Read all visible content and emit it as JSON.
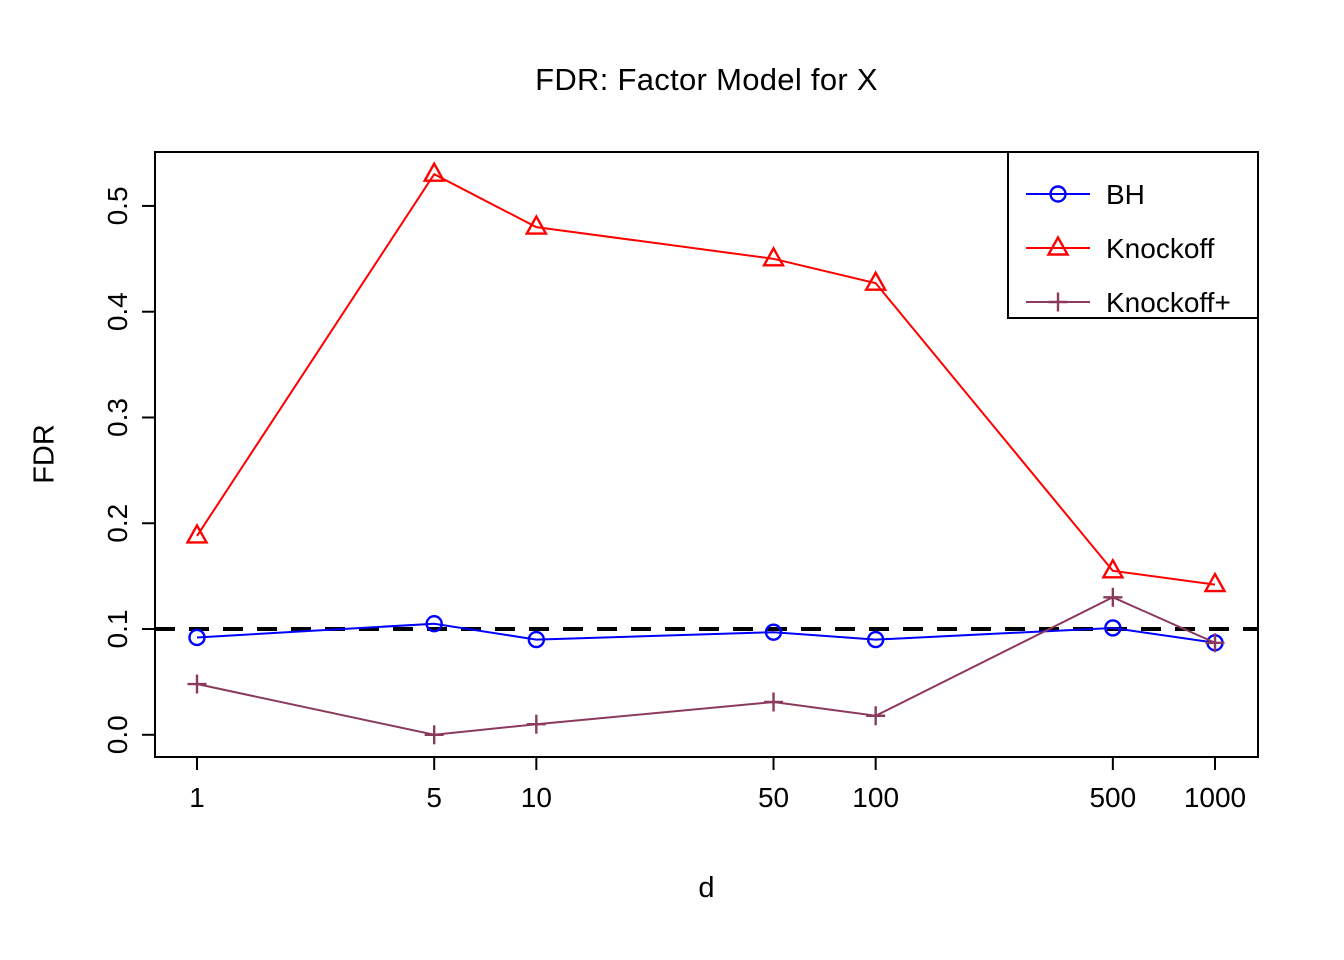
{
  "chart_data": {
    "type": "line",
    "title": "FDR: Factor Model for X",
    "xlabel": "d",
    "ylabel": "FDR",
    "x_scale": "log10",
    "x": [
      1,
      5,
      10,
      50,
      100,
      500,
      1000
    ],
    "x_tick_labels": [
      "1",
      "5",
      "10",
      "50",
      "100",
      "500",
      "1000"
    ],
    "y_ticks": [
      0.0,
      0.1,
      0.2,
      0.3,
      0.4,
      0.5
    ],
    "y_tick_labels": [
      "0.0",
      "0.1",
      "0.2",
      "0.3",
      "0.4",
      "0.5"
    ],
    "ylim": [
      -0.021,
      0.551
    ],
    "grid": false,
    "series": [
      {
        "name": "BH",
        "color": "#0000ff",
        "marker": "circle",
        "values": [
          0.092,
          0.105,
          0.09,
          0.097,
          0.09,
          0.101,
          0.087
        ]
      },
      {
        "name": "Knockoff",
        "color": "#ff0000",
        "marker": "triangle",
        "values": [
          0.188,
          0.53,
          0.48,
          0.45,
          0.427,
          0.155,
          0.142
        ]
      },
      {
        "name": "Knockoff+",
        "color": "#8b3a5e",
        "marker": "plus",
        "values": [
          0.048,
          0.0,
          0.01,
          0.031,
          0.018,
          0.13,
          0.087
        ]
      }
    ],
    "reference_line": {
      "y": 0.1,
      "style": "dashed",
      "color": "#000000"
    },
    "legend": {
      "position": "top-right",
      "entries": [
        "BH",
        "Knockoff",
        "Knockoff+"
      ]
    }
  }
}
